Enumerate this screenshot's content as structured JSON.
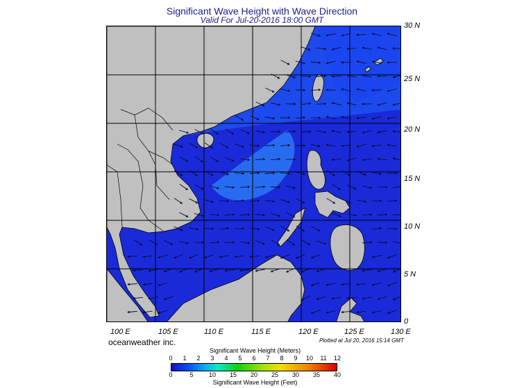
{
  "header": {
    "title": "Significant Wave Height with Wave Direction",
    "subtitle": "Valid For Jul-20-2016 18:00 GMT"
  },
  "map": {
    "lat_labels": [
      "30 N",
      "25 N",
      "20 N",
      "15 N",
      "10 N",
      "5 N",
      "0"
    ],
    "lon_labels": [
      "100 E",
      "105 E",
      "110 E",
      "115 E",
      "120 E",
      "125 E",
      "130 E"
    ],
    "colors": {
      "land": "#c0c0c0",
      "ocean_low": "#1a22d8",
      "ocean_mid": "#1e50f0",
      "ocean_high": "#2a78f5",
      "arrows": "#0a0a30",
      "grid": "#000000"
    }
  },
  "footer": {
    "credit": "oceanweather inc.",
    "plotted": "Plotted at Jul 20, 2016 15:14 GMT"
  },
  "colorbar": {
    "title_meters": "Significant Wave Height (Meters)",
    "title_feet": "Significant Wave Height (Feet)",
    "meter_ticks": [
      "0",
      "1",
      "2",
      "3",
      "4",
      "5",
      "6",
      "7",
      "8",
      "9",
      "10",
      "11",
      "12"
    ],
    "feet_ticks": [
      "0",
      "5",
      "10",
      "15",
      "20",
      "25",
      "30",
      "35",
      "40"
    ]
  }
}
